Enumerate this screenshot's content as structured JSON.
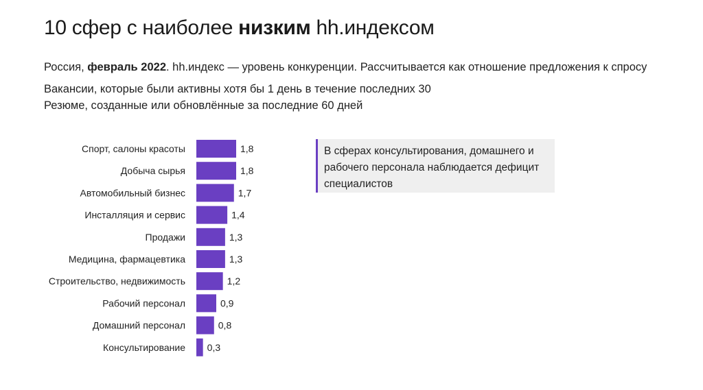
{
  "header": {
    "title_prefix": "10 сфер с наиболее ",
    "title_bold": "низким",
    "title_suffix": " hh.индексом",
    "subtitle_prefix": "Россия, ",
    "subtitle_bold": "февраль 2022",
    "subtitle_suffix": ". hh.индекс — уровень конкуренции. Рассчитывается как отношение предложения к спросу",
    "note_vacancies": "Вакансии, которые были активны хотя бы 1 день в течение последних 30",
    "note_resumes": "Резюме, созданные или обновлённые за последние 60 дней"
  },
  "callout": {
    "text": "В сферах консультирования, домашнего и рабочего персонала наблюдается дефицит специалистов"
  },
  "colors": {
    "bar": "#6a3fc2",
    "accent": "#6a3fc2"
  },
  "chart_data": {
    "type": "bar",
    "orientation": "horizontal",
    "categories": [
      "Спорт, салоны красоты",
      "Добыча сырья",
      "Автомобильный бизнес",
      "Инсталляция и сервис",
      "Продажи",
      "Медицина, фармацевтика",
      "Строительство, недвижимость",
      "Рабочий персонал",
      "Домашний персонал",
      "Консультирование"
    ],
    "values": [
      1.8,
      1.8,
      1.7,
      1.4,
      1.3,
      1.3,
      1.2,
      0.9,
      0.8,
      0.3
    ],
    "value_labels": [
      "1,8",
      "1,8",
      "1,7",
      "1,4",
      "1,3",
      "1,3",
      "1,2",
      "0,9",
      "0,8",
      "0,3"
    ],
    "title": "",
    "xlabel": "",
    "ylabel": "",
    "xlim": [
      0,
      1.8
    ],
    "grid": false,
    "legend": "none"
  }
}
